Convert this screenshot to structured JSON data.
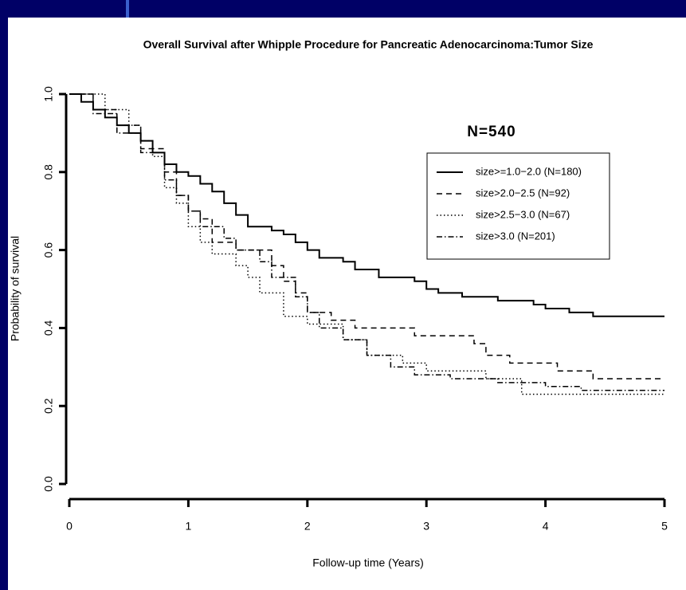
{
  "chart_data": {
    "type": "line",
    "step": true,
    "title": "Overall Survival after Whipple Procedure for Pancreatic Adenocarcinoma:Tumor Size",
    "x_label": "Follow-up time (Years)",
    "y_label": "Probability of survival",
    "annotation": "N=540",
    "annotation_color": "#1a1a7a",
    "xlim": [
      0,
      5
    ],
    "ylim": [
      0,
      1
    ],
    "xticks": [
      0,
      1,
      2,
      3,
      4,
      5
    ],
    "yticks": [
      {
        "value": 0,
        "label": "0.0"
      },
      {
        "value": 0.2,
        "label": "0.2"
      },
      {
        "value": 0.4,
        "label": "0.4"
      },
      {
        "value": 0.6,
        "label": "0.6"
      },
      {
        "value": 0.8,
        "label": "0.8"
      },
      {
        "value": 1,
        "label": "1.0"
      }
    ],
    "legend": "upper right",
    "series": [
      {
        "name": "size>=1.0−2.0 (N=180)",
        "color": "#000000",
        "dash": "none",
        "width": 2,
        "x": [
          0,
          0.1,
          0.2,
          0.3,
          0.4,
          0.5,
          0.6,
          0.7,
          0.8,
          0.9,
          1.0,
          1.1,
          1.2,
          1.3,
          1.4,
          1.5,
          1.7,
          1.8,
          1.9,
          2.0,
          2.1,
          2.3,
          2.4,
          2.6,
          2.9,
          3.0,
          3.1,
          3.3,
          3.6,
          3.9,
          4.0,
          4.2,
          4.4,
          5.0
        ],
        "values": [
          1.0,
          0.98,
          0.96,
          0.94,
          0.92,
          0.9,
          0.88,
          0.85,
          0.82,
          0.8,
          0.79,
          0.77,
          0.75,
          0.72,
          0.69,
          0.66,
          0.65,
          0.64,
          0.62,
          0.6,
          0.58,
          0.57,
          0.55,
          0.53,
          0.52,
          0.5,
          0.49,
          0.48,
          0.47,
          0.46,
          0.45,
          0.44,
          0.43,
          0.43
        ]
      },
      {
        "name": "size>2.0−2.5 (N=92)",
        "color": "#000000",
        "dash": "7 5",
        "width": 1.5,
        "x": [
          0,
          0.2,
          0.4,
          0.6,
          0.8,
          0.9,
          1.0,
          1.1,
          1.2,
          1.4,
          1.7,
          1.8,
          1.9,
          2.0,
          2.2,
          2.4,
          2.9,
          3.4,
          3.5,
          3.7,
          4.1,
          4.4,
          5.0
        ],
        "values": [
          1.0,
          0.96,
          0.92,
          0.86,
          0.8,
          0.74,
          0.7,
          0.68,
          0.62,
          0.6,
          0.56,
          0.52,
          0.49,
          0.44,
          0.42,
          0.4,
          0.38,
          0.36,
          0.33,
          0.31,
          0.29,
          0.27,
          0.27
        ]
      },
      {
        "name": "size>2.5−3.0 (N=67)",
        "color": "#000000",
        "dash": "1.5 3",
        "width": 1.5,
        "x": [
          0,
          0.3,
          0.5,
          0.6,
          0.7,
          0.8,
          0.9,
          1.0,
          1.1,
          1.2,
          1.4,
          1.5,
          1.6,
          1.8,
          2.0,
          2.3,
          2.5,
          2.8,
          3.0,
          3.5,
          3.8,
          5.0
        ],
        "values": [
          1.0,
          0.96,
          0.92,
          0.88,
          0.84,
          0.76,
          0.72,
          0.66,
          0.62,
          0.59,
          0.56,
          0.53,
          0.49,
          0.43,
          0.41,
          0.37,
          0.33,
          0.31,
          0.29,
          0.27,
          0.23,
          0.23
        ]
      },
      {
        "name": "size>3.0 (N=201)",
        "color": "#000000",
        "dash": "7 3 1.5 3",
        "width": 1.5,
        "x": [
          0,
          0.2,
          0.4,
          0.6,
          0.8,
          0.9,
          1.0,
          1.1,
          1.3,
          1.4,
          1.6,
          1.7,
          1.9,
          2.0,
          2.1,
          2.3,
          2.5,
          2.7,
          2.9,
          3.2,
          3.6,
          4.0,
          4.3,
          5.0
        ],
        "values": [
          1.0,
          0.95,
          0.9,
          0.85,
          0.78,
          0.74,
          0.7,
          0.66,
          0.63,
          0.6,
          0.57,
          0.53,
          0.48,
          0.44,
          0.4,
          0.37,
          0.33,
          0.3,
          0.28,
          0.27,
          0.26,
          0.25,
          0.24,
          0.24
        ]
      }
    ]
  }
}
